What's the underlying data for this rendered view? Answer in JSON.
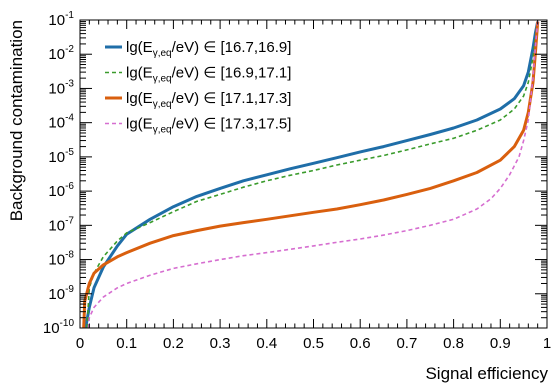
{
  "chart_data": {
    "type": "line",
    "title": "",
    "xlabel": "Signal efficiency",
    "ylabel": "Background contamination",
    "xlim": [
      0,
      1
    ],
    "ylim": [
      1e-10,
      0.1
    ],
    "yscale": "log",
    "grid": false,
    "legend_position": "top-left",
    "x_ticks": [
      "0",
      "0.1",
      "0.2",
      "0.3",
      "0.4",
      "0.5",
      "0.6",
      "0.7",
      "0.8",
      "0.9",
      "1"
    ],
    "y_ticks": [
      {
        "base": "10",
        "exp": "-10",
        "value": 1e-10
      },
      {
        "base": "10",
        "exp": "-9",
        "value": 1e-09
      },
      {
        "base": "10",
        "exp": "-8",
        "value": 1e-08
      },
      {
        "base": "10",
        "exp": "-7",
        "value": 1e-07
      },
      {
        "base": "10",
        "exp": "-6",
        "value": 1e-06
      },
      {
        "base": "10",
        "exp": "-5",
        "value": 1e-05
      },
      {
        "base": "10",
        "exp": "-4",
        "value": 0.0001
      },
      {
        "base": "10",
        "exp": "-3",
        "value": 0.001
      },
      {
        "base": "10",
        "exp": "-2",
        "value": 0.01
      },
      {
        "base": "10",
        "exp": "-1",
        "value": 0.1
      }
    ],
    "series": [
      {
        "name": "lg(Eγ,eq/eV) ∈ [16.7,16.9]",
        "legend_pre": "lg(E",
        "legend_sub": "γ,eq",
        "legend_post": "/eV) ∈ [16.7,16.9]",
        "color": "#1f6ea8",
        "style": "solid",
        "x": [
          0.012,
          0.02,
          0.03,
          0.05,
          0.08,
          0.1,
          0.15,
          0.2,
          0.25,
          0.3,
          0.35,
          0.4,
          0.45,
          0.5,
          0.55,
          0.6,
          0.65,
          0.7,
          0.75,
          0.8,
          0.85,
          0.9,
          0.93,
          0.95,
          0.96,
          0.97,
          0.975,
          0.98
        ],
        "y": [
          1e-10,
          4e-10,
          1.5e-09,
          6e-09,
          2.5e-08,
          5.5e-08,
          1.5e-07,
          3.5e-07,
          7e-07,
          1.2e-06,
          2e-06,
          3e-06,
          4.5e-06,
          6.5e-06,
          9.5e-06,
          1.4e-05,
          2e-05,
          3e-05,
          4.5e-05,
          7e-05,
          0.00012,
          0.00025,
          0.0005,
          0.0012,
          0.003,
          0.015,
          0.04,
          0.09
        ]
      },
      {
        "name": "lg(Eγ,eq/eV) ∈ [16.9,17.1]",
        "legend_pre": "lg(E",
        "legend_sub": "γ,eq",
        "legend_post": "/eV) ∈ [16.9,17.1]",
        "color": "#3a9b2c",
        "style": "dashed",
        "x": [
          0.015,
          0.02,
          0.03,
          0.05,
          0.08,
          0.1,
          0.15,
          0.2,
          0.25,
          0.3,
          0.35,
          0.4,
          0.45,
          0.5,
          0.55,
          0.6,
          0.65,
          0.7,
          0.75,
          0.8,
          0.85,
          0.9,
          0.93,
          0.95,
          0.96,
          0.97,
          0.975,
          0.98
        ],
        "y": [
          1e-10,
          1.5e-09,
          4e-09,
          1.2e-08,
          3.5e-08,
          6e-08,
          1.2e-07,
          2.5e-07,
          5e-07,
          8e-07,
          1.3e-06,
          2e-06,
          2.9e-06,
          4e-06,
          5.8e-06,
          8e-06,
          1.1e-05,
          1.6e-05,
          2.4e-05,
          3.5e-05,
          6e-05,
          0.00012,
          0.00025,
          0.0006,
          0.0015,
          0.008,
          0.03,
          0.09
        ]
      },
      {
        "name": "lg(Eγ,eq/eV) ∈ [17.1,17.3]",
        "legend_pre": "lg(E",
        "legend_sub": "γ,eq",
        "legend_post": "/eV) ∈ [17.1,17.3]",
        "color": "#d95f0e",
        "style": "solid",
        "x": [
          0.008,
          0.01,
          0.02,
          0.03,
          0.05,
          0.08,
          0.1,
          0.15,
          0.2,
          0.25,
          0.3,
          0.35,
          0.4,
          0.45,
          0.5,
          0.55,
          0.6,
          0.65,
          0.7,
          0.75,
          0.8,
          0.85,
          0.9,
          0.93,
          0.95,
          0.96,
          0.97,
          0.975,
          0.98
        ],
        "y": [
          1e-10,
          6e-10,
          2e-09,
          4e-09,
          7e-09,
          1.2e-08,
          1.6e-08,
          3e-08,
          5e-08,
          7e-08,
          9.5e-08,
          1.2e-07,
          1.5e-07,
          1.9e-07,
          2.4e-07,
          3e-07,
          4e-07,
          5.5e-07,
          8e-07,
          1.2e-06,
          2e-06,
          3.5e-06,
          8e-06,
          2e-05,
          6e-05,
          0.0002,
          0.0015,
          0.01,
          0.09
        ]
      },
      {
        "name": "lg(Eγ,eq/eV) ∈ [17.3,17.5]",
        "legend_pre": "lg(E",
        "legend_sub": "γ,eq",
        "legend_post": "/eV) ∈ [17.3,17.5]",
        "color": "#d66ed0",
        "style": "dashed",
        "x": [
          0.018,
          0.02,
          0.03,
          0.05,
          0.08,
          0.1,
          0.15,
          0.2,
          0.25,
          0.3,
          0.35,
          0.4,
          0.45,
          0.5,
          0.55,
          0.6,
          0.65,
          0.7,
          0.75,
          0.8,
          0.85,
          0.88,
          0.9,
          0.92,
          0.94,
          0.95,
          0.96,
          0.97,
          0.975,
          0.98
        ],
        "y": [
          1e-10,
          2e-10,
          4e-10,
          8e-10,
          1.5e-09,
          2e-09,
          3.5e-09,
          5.5e-09,
          7.5e-09,
          1e-08,
          1.3e-08,
          1.6e-08,
          2e-08,
          2.5e-08,
          3.2e-08,
          4e-08,
          5.2e-08,
          7e-08,
          1e-07,
          1.5e-07,
          3e-07,
          6e-07,
          1.2e-06,
          3e-06,
          1e-05,
          3e-05,
          0.00012,
          0.002,
          0.015,
          0.09
        ]
      }
    ]
  }
}
